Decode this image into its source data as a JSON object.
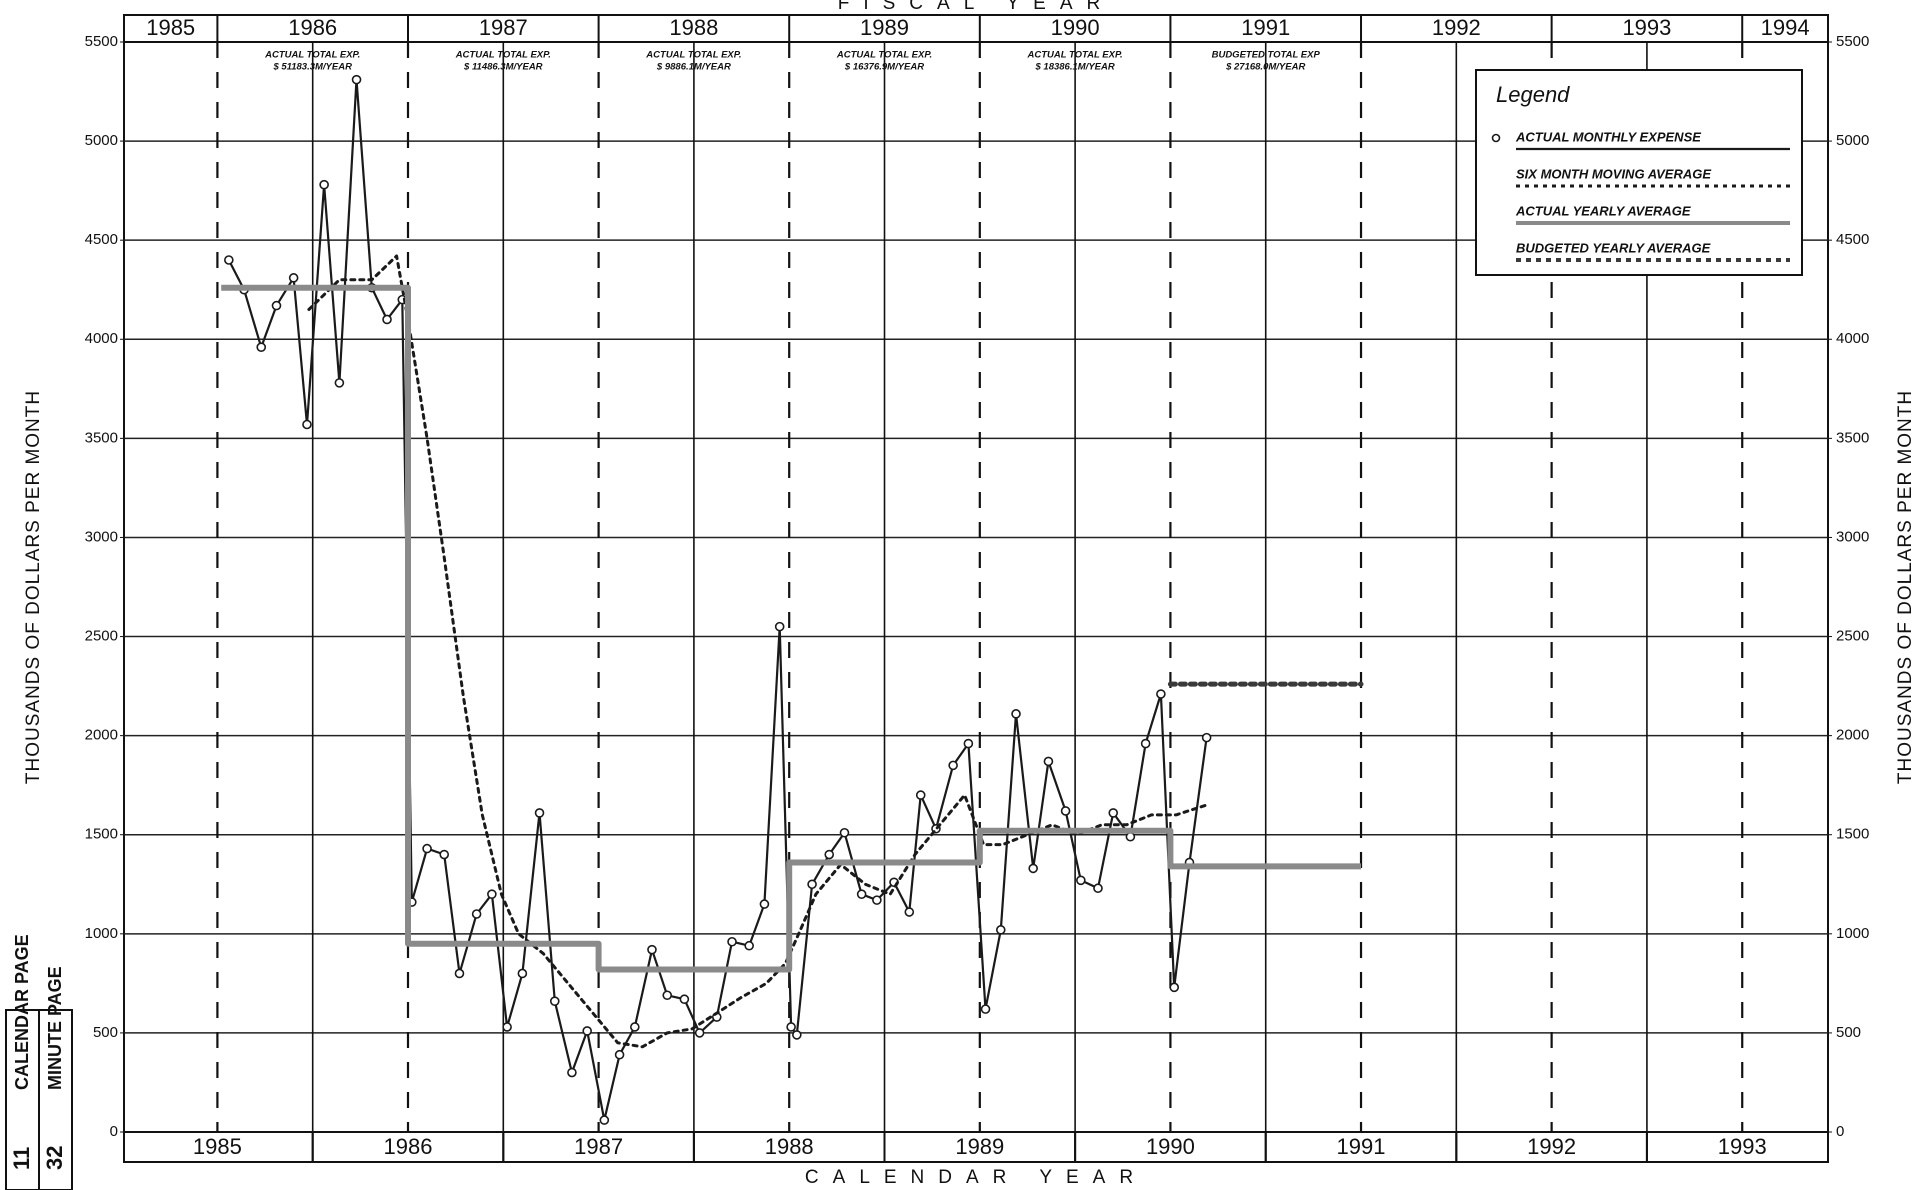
{
  "chart_data": {
    "type": "line",
    "title": "FISCAL YEAR",
    "xlabel": "CALENDAR YEAR",
    "ylabel": "THOUSANDS OF DOLLARS PER MONTH",
    "xlim": [
      1984.51,
      1993.45
    ],
    "xticks": [
      1985,
      1986,
      1987,
      1988,
      1989,
      1990,
      1991,
      1992,
      1993
    ],
    "ylim": [
      0,
      5500
    ],
    "yticks": [
      0,
      500,
      1000,
      1500,
      2000,
      2500,
      3000,
      3500,
      4000,
      4500,
      5000,
      5500
    ],
    "grid": true,
    "fiscal_years": [
      "1985",
      "1986",
      "1987",
      "1988",
      "1989",
      "1990",
      "1991",
      "1992",
      "1993",
      "1994"
    ],
    "fiscal_notes": [
      [
        "ACTUAL TOTAL EXP.",
        "$ 51183.3M/YEAR"
      ],
      [
        "ACTUAL TOTAL EXP.",
        "$ 11486.3M/YEAR"
      ],
      [
        "ACTUAL TOTAL EXP.",
        "$ 9886.1M/YEAR"
      ],
      [
        "ACTUAL TOTAL EXP.",
        "$ 16376.9M/YEAR"
      ],
      [
        "ACTUAL TOTAL EXP.",
        "$ 18386.1M/YEAR"
      ],
      [
        "BUDGETED TOTAL EXP",
        "$ 27168.0M/YEAR"
      ]
    ],
    "legend_title": "Legend",
    "legend": "upper right",
    "series": [
      {
        "name": "ACTUAL MONTHLY EXPENSE",
        "color": "#1a1a1a",
        "line_style": "solid",
        "marker": "circle",
        "x": [
          1985.06,
          1985.14,
          1985.23,
          1985.31,
          1985.4,
          1985.47,
          1985.56,
          1985.64,
          1985.73,
          1985.81,
          1985.89,
          1985.97,
          1986.02,
          1986.1,
          1986.19,
          1986.27,
          1986.36,
          1986.44,
          1986.52,
          1986.6,
          1986.69,
          1986.77,
          1986.86,
          1986.94,
          1987.03,
          1987.11,
          1987.19,
          1987.28,
          1987.36,
          1987.45,
          1987.53,
          1987.62,
          1987.7,
          1987.79,
          1987.87,
          1987.95,
          1988.01,
          1988.04,
          1988.12,
          1988.21,
          1988.29,
          1988.38,
          1988.46,
          1988.55,
          1988.63,
          1988.69,
          1988.77,
          1988.86,
          1988.94,
          1989.03,
          1989.11,
          1989.19,
          1989.28,
          1989.36,
          1989.45,
          1989.53,
          1989.62,
          1989.7,
          1989.79,
          1989.87,
          1989.95,
          1990.02,
          1990.1,
          1990.19
        ],
        "values": [
          4400,
          4250,
          3960,
          4170,
          4310,
          3570,
          4780,
          3780,
          5310,
          4260,
          4100,
          4200,
          1160,
          1430,
          1400,
          800,
          1100,
          1200,
          530,
          800,
          1610,
          660,
          300,
          510,
          60,
          390,
          530,
          920,
          690,
          670,
          500,
          580,
          960,
          940,
          1150,
          2550,
          530,
          490,
          1250,
          1400,
          1510,
          1200,
          1170,
          1260,
          1110,
          1700,
          1530,
          1850,
          1960,
          620,
          1020,
          2110,
          1330,
          1870,
          1620,
          1270,
          1230,
          1610,
          1490,
          1960,
          2210,
          730,
          1360,
          1990
        ]
      },
      {
        "name": "SIX MONTH MOVING AVERAGE",
        "color": "#1a1a1a",
        "line_style": "dotted",
        "marker": "none",
        "x": [
          1985.48,
          1985.64,
          1985.81,
          1985.94,
          1986.0,
          1986.1,
          1986.19,
          1986.29,
          1986.39,
          1986.49,
          1986.58,
          1986.71,
          1986.84,
          1986.97,
          1987.1,
          1987.23,
          1987.36,
          1987.49,
          1987.62,
          1987.75,
          1987.88,
          1987.98,
          1988.05,
          1988.14,
          1988.27,
          1988.4,
          1988.53,
          1988.66,
          1988.79,
          1988.92,
          1989.02,
          1989.12,
          1989.25,
          1989.38,
          1989.51,
          1989.64,
          1989.77,
          1989.9,
          1990.03,
          1990.19
        ],
        "values": [
          4150,
          4300,
          4300,
          4420,
          4100,
          3500,
          2900,
          2200,
          1600,
          1200,
          1000,
          900,
          750,
          600,
          450,
          430,
          500,
          520,
          600,
          680,
          750,
          850,
          1000,
          1200,
          1350,
          1250,
          1200,
          1400,
          1550,
          1700,
          1450,
          1450,
          1500,
          1550,
          1500,
          1550,
          1550,
          1600,
          1600,
          1650
        ]
      },
      {
        "name": "ACTUAL YEARLY AVERAGE",
        "color": "#8a8a8a",
        "line_style": "thick",
        "marker": "none",
        "x": [
          1985.02,
          1986,
          1986,
          1987,
          1987,
          1988,
          1988,
          1989,
          1989,
          1990,
          1990,
          1991
        ],
        "values": [
          4260,
          4260,
          950,
          950,
          820,
          820,
          1360,
          1360,
          1520,
          1520,
          1340,
          1340
        ]
      },
      {
        "name": "BUDGETED YEARLY AVERAGE",
        "color": "#3a3a3a",
        "line_style": "heavy-dotted",
        "marker": "none",
        "x": [
          1990,
          1991
        ],
        "values": [
          2260,
          2260
        ]
      }
    ],
    "stamp": {
      "top_label": "CALENDAR PAGE",
      "top_number": "11",
      "bottom_label": "MINUTE PAGE",
      "bottom_number": "32"
    }
  }
}
